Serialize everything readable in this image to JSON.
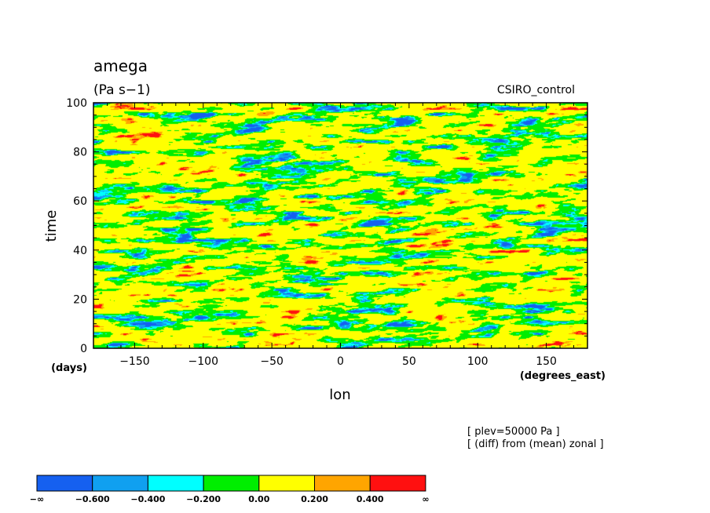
{
  "chart_data": {
    "type": "heatmap",
    "title": "amega",
    "units": "(Pa s−1)",
    "dataset": "CSIRO_control",
    "xlabel": "lon",
    "xunits": "(degrees_east)",
    "ylabel": "time",
    "yunits": "(days)",
    "xlim": [
      -180,
      180
    ],
    "ylim": [
      0,
      100
    ],
    "x_ticks": [
      -150,
      -100,
      -50,
      0,
      50,
      100,
      150
    ],
    "y_ticks": [
      0,
      20,
      40,
      60,
      80,
      100
    ],
    "x_tick_labels": [
      "−150",
      "−100",
      "−50",
      "0",
      "50",
      "100",
      "150"
    ],
    "y_tick_labels": [
      "0",
      "20",
      "40",
      "60",
      "80",
      "100"
    ],
    "annotations": [
      "[ plev=50000 Pa ]",
      "[ (diff) from (mean) zonal ]"
    ],
    "colorbar": {
      "colors": [
        "#1560f0",
        "#10a0f0",
        "#00ffff",
        "#00ee00",
        "#ffff00",
        "#ffa500",
        "#ff1010"
      ],
      "labels": [
        "−∞",
        "−0.600",
        "−0.400",
        "−0.200",
        "0.00",
        "0.200",
        "0.400",
        "∞"
      ]
    }
  }
}
